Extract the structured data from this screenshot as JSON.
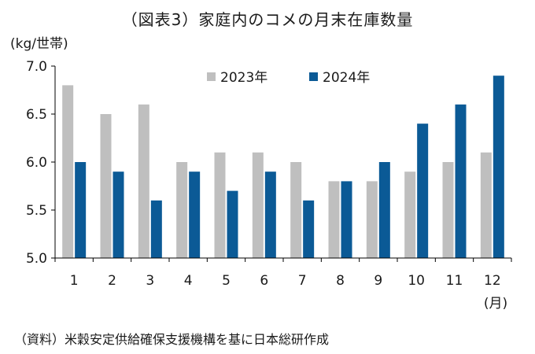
{
  "title": "（図表3）家庭内のコメの月末在庫数量",
  "y_unit_label": "(kg/世帯)",
  "x_unit_label": "(月)",
  "source": "（資料）米穀安定供給確保支援機構を基に日本総研作成",
  "colors": {
    "s2023": "#bfbfbf",
    "s2024": "#0b5a96",
    "axis": "#000000"
  },
  "chart_data": {
    "type": "bar",
    "categories": [
      "1",
      "2",
      "3",
      "4",
      "5",
      "6",
      "7",
      "8",
      "9",
      "10",
      "11",
      "12"
    ],
    "series": [
      {
        "name": "2023年",
        "values": [
          6.8,
          6.5,
          6.6,
          6.0,
          6.1,
          6.1,
          6.0,
          5.8,
          5.8,
          5.9,
          6.0,
          6.1
        ]
      },
      {
        "name": "2024年",
        "values": [
          6.0,
          5.9,
          5.6,
          5.9,
          5.7,
          5.9,
          5.6,
          5.8,
          6.0,
          6.4,
          6.6,
          6.9
        ]
      }
    ],
    "ylim": [
      5.0,
      7.0
    ],
    "yticks": [
      "5.0",
      "5.5",
      "6.0",
      "6.5",
      "7.0"
    ],
    "legend_position": "top-right",
    "grid": false
  }
}
